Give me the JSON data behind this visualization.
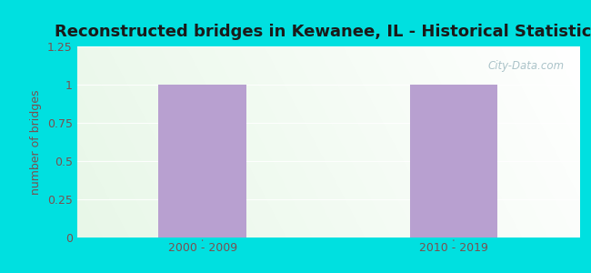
{
  "title": "Reconstructed bridges in Kewanee, IL - Historical Statistics",
  "categories": [
    "2000 - 2009",
    "2010 - 2019"
  ],
  "values": [
    1,
    1
  ],
  "bar_color": "#b8a0d0",
  "ylabel": "number of bridges",
  "ylim": [
    0,
    1.25
  ],
  "yticks": [
    0,
    0.25,
    0.5,
    0.75,
    1,
    1.25
  ],
  "background_outer": "#00e0e0",
  "grad_left": "#c8e8c0",
  "grad_right": "#f8fff8",
  "grad_top": "#f0f8f0",
  "grad_topleft": "#e0f0e0",
  "title_color": "#1a1a1a",
  "ylabel_color": "#7a5050",
  "tick_color": "#7a5050",
  "watermark": "City-Data.com",
  "title_fontsize": 13,
  "ylabel_fontsize": 9,
  "tick_fontsize": 9,
  "bar_width": 0.35
}
